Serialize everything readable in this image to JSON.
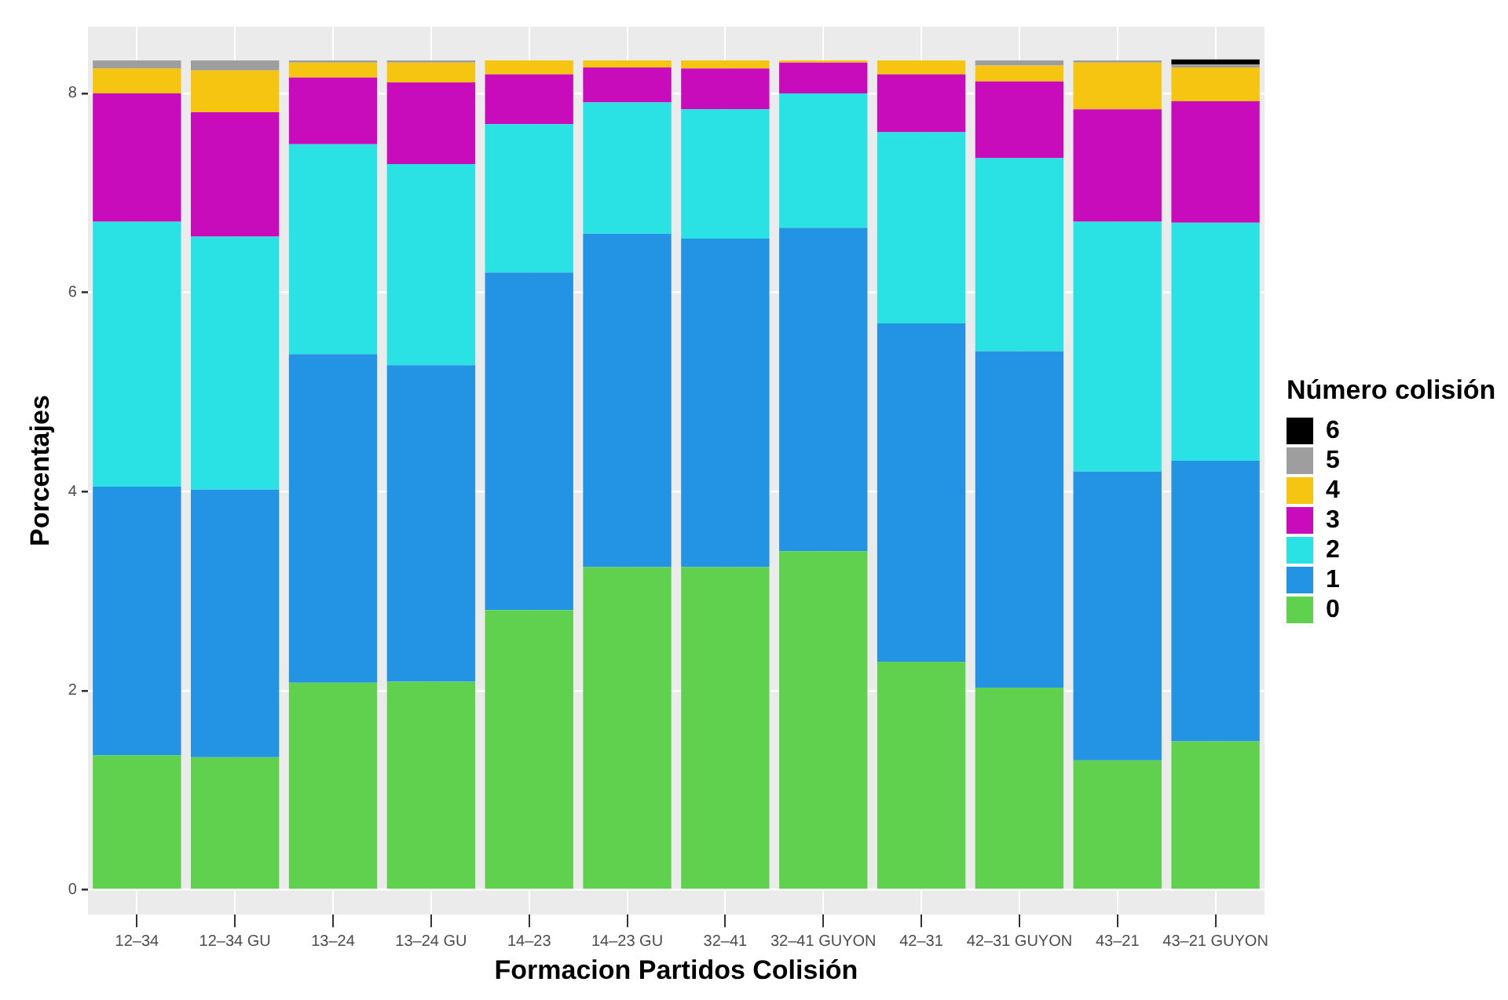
{
  "chart_data": {
    "type": "bar",
    "xlabel": "Formacion Partidos Colisión",
    "ylabel": "Porcentajes",
    "legend_title": "Número colisión",
    "categories": [
      "12–34",
      "12–34 GU",
      "13–24",
      "13–24 GU",
      "14–23",
      "14–23 GU",
      "32–41",
      "32–41 GUYON",
      "42–31",
      "42–31 GUYON",
      "43–21",
      "43–21 GUYON"
    ],
    "series": [
      {
        "name": "0",
        "color": "#5fd14f",
        "values": [
          1.35,
          1.33,
          2.08,
          2.09,
          2.81,
          3.24,
          3.24,
          3.4,
          2.29,
          2.03,
          1.3,
          1.49
        ]
      },
      {
        "name": "1",
        "color": "#2394e3",
        "values": [
          2.7,
          2.69,
          3.3,
          3.18,
          3.39,
          3.35,
          3.3,
          3.25,
          3.4,
          3.38,
          2.9,
          2.82
        ]
      },
      {
        "name": "2",
        "color": "#2ae2e4",
        "values": [
          2.66,
          2.54,
          2.11,
          2.02,
          1.49,
          1.32,
          1.3,
          1.35,
          1.92,
          1.94,
          2.51,
          2.39
        ]
      },
      {
        "name": "3",
        "color": "#c90cbb",
        "values": [
          1.29,
          1.25,
          0.67,
          0.82,
          0.5,
          0.35,
          0.41,
          0.31,
          0.58,
          0.77,
          1.13,
          1.22
        ]
      },
      {
        "name": "4",
        "color": "#f5c511",
        "values": [
          0.25,
          0.42,
          0.15,
          0.2,
          0.14,
          0.07,
          0.08,
          0.02,
          0.14,
          0.16,
          0.47,
          0.34
        ]
      },
      {
        "name": "5",
        "color": "#9e9e9e",
        "values": [
          0.08,
          0.1,
          0.02,
          0.02,
          null,
          null,
          null,
          null,
          null,
          0.05,
          0.02,
          0.03
        ]
      },
      {
        "name": "6",
        "color": "#000000",
        "values": [
          null,
          null,
          null,
          null,
          null,
          null,
          null,
          null,
          null,
          null,
          null,
          0.05
        ]
      }
    ],
    "stacked": true,
    "ylim": [
      -0.25,
      8.67
    ],
    "yticks": [
      0,
      2,
      4,
      6,
      8
    ],
    "grid": true,
    "legend": "right"
  }
}
